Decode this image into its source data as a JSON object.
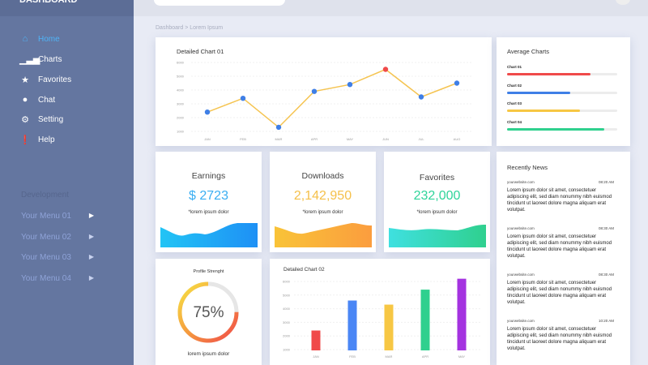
{
  "brand": "DASHBOARD",
  "breadcrumb": "Dashboard > Lorem Ipsum",
  "sidebar": {
    "items": [
      {
        "label": "Home",
        "icon": "home-icon"
      },
      {
        "label": "Charts",
        "icon": "bar-chart-icon"
      },
      {
        "label": "Favorites",
        "icon": "star-icon"
      },
      {
        "label": "Chat",
        "icon": "chat-icon"
      },
      {
        "label": "Setting",
        "icon": "gear-icon"
      },
      {
        "label": "Help",
        "icon": "info-icon"
      }
    ],
    "section": "Development",
    "menus": [
      "Your Menu 01",
      "Your Menu 02",
      "Your Menu 03",
      "Your Menu 04"
    ]
  },
  "stats": [
    {
      "title": "Earnings",
      "value": "$ 2723",
      "sub": "*lorem ipsum dolor",
      "color": "#3aaef2"
    },
    {
      "title": "Downloads",
      "value": "2,142,950",
      "sub": "*lorem ipsum dolor",
      "color": "#f5c04a"
    },
    {
      "title": "Favorites",
      "value": "232,000",
      "sub": "*lorem ipsum dolor",
      "color": "#2fd49a"
    }
  ],
  "profile": {
    "title": "Profile Strenght",
    "value": "75%",
    "percent": 75,
    "sub": "lorem ipsum dolor"
  },
  "average": {
    "title": "Average Charts",
    "bars": [
      {
        "label": "Chart 01",
        "value": 76,
        "color": "#f04a4a"
      },
      {
        "label": "Chart 02",
        "value": 57,
        "color": "#3f7fe6"
      },
      {
        "label": "Chart 03",
        "value": 66,
        "color": "#f7c744"
      },
      {
        "label": "Chart 04",
        "value": 88,
        "color": "#2fd08e"
      }
    ]
  },
  "news": {
    "title": "Recently News",
    "items": [
      {
        "source": "yourwebsite.com",
        "time": "08:20 AM",
        "body": "Lorem ipsum dolor sit amet, consectetuer adipiscing elit, sed diam nonummy nibh euismod tincidunt ut laoreet dolore magna aliquam erat volutpat."
      },
      {
        "source": "yourwebsite.com",
        "time": "08:30 AM",
        "body": "Lorem ipsum dolor sit amet, consectetuer adipiscing elit, sed diam nonummy nibh euismod tincidunt ut laoreet dolore magna aliquam erat volutpat."
      },
      {
        "source": "yourwebsite.com",
        "time": "08:30 AM",
        "body": "Lorem ipsum dolor sit amet, consectetuer adipiscing elit, sed diam nonummy nibh euismod tincidunt ut laoreet dolore magna aliquam erat volutpat."
      },
      {
        "source": "yourwebsite.com",
        "time": "10:20 AM",
        "body": "Lorem ipsum dolor sit amet, consectetuer adipiscing elit, sed diam nonummy nibh euismod tincidunt ut laoreet dolore magna aliquam erat volutpat."
      }
    ]
  },
  "chart_data": [
    {
      "type": "line",
      "title": "Detailed Chart 01",
      "categories": [
        "JAN",
        "FEB",
        "MAR",
        "APR",
        "MAY",
        "JUN",
        "JUL",
        "AUG"
      ],
      "values": [
        2400,
        3400,
        1300,
        3900,
        4400,
        5500,
        3500,
        4500
      ],
      "highlight_index": 5,
      "yticks": [
        "6000",
        "5000",
        "4000",
        "3000",
        "2000",
        "1000"
      ],
      "ylim": [
        1000,
        6000
      ],
      "line_color": "#f5c451",
      "point_color": "#3f7fe6",
      "highlight_color": "#f04a4a"
    },
    {
      "type": "bar",
      "title": "Detailed Chart 02",
      "categories": [
        "JAN",
        "FEB",
        "MAR",
        "APR",
        "MAY"
      ],
      "values": [
        2400,
        4600,
        4300,
        5400,
        6200
      ],
      "colors": [
        "#f04a4a",
        "#4a86f5",
        "#f7c744",
        "#2fd08e",
        "#a433e0"
      ],
      "yticks": [
        "6000",
        "5000",
        "4000",
        "3000",
        "2000",
        "1000"
      ],
      "ylim": [
        1000,
        6000
      ]
    }
  ]
}
